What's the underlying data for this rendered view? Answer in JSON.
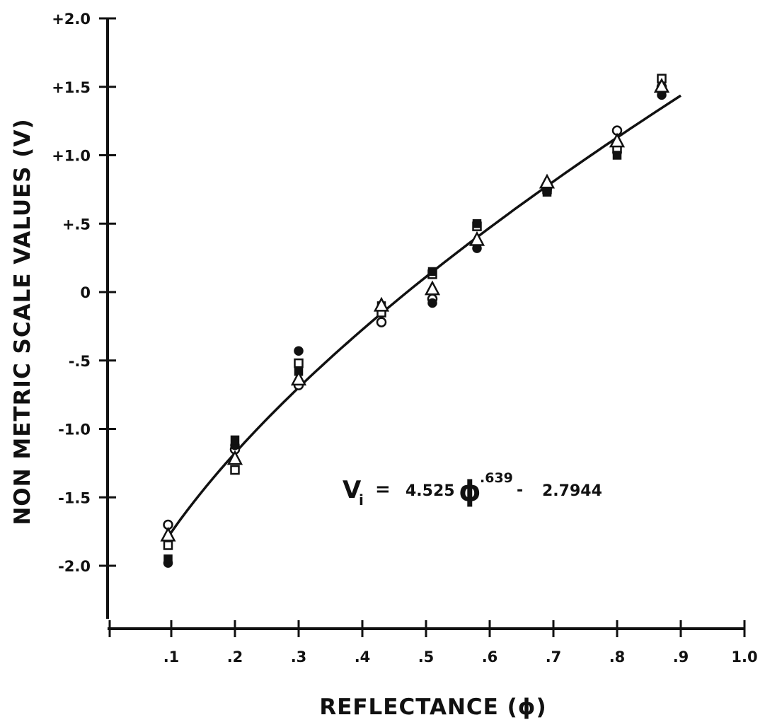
{
  "chart_data": {
    "type": "scatter",
    "xlabel": "REFLECTANCE (ϕ)",
    "ylabel": "NON METRIC SCALE VALUES (V)",
    "xlim": [
      0,
      1.0
    ],
    "ylim": [
      -2.4,
      2.0
    ],
    "x_ticks": [
      {
        "value": 0.1,
        "label": ".1"
      },
      {
        "value": 0.2,
        "label": ".2"
      },
      {
        "value": 0.3,
        "label": ".3"
      },
      {
        "value": 0.4,
        "label": ".4"
      },
      {
        "value": 0.5,
        "label": ".5"
      },
      {
        "value": 0.6,
        "label": ".6"
      },
      {
        "value": 0.7,
        "label": ".7"
      },
      {
        "value": 0.8,
        "label": ".8"
      },
      {
        "value": 0.9,
        "label": ".9"
      },
      {
        "value": 1.0,
        "label": "1.0"
      }
    ],
    "y_ticks": [
      {
        "value": 2.0,
        "label": "+2.0"
      },
      {
        "value": 1.5,
        "label": "+1.5"
      },
      {
        "value": 1.0,
        "label": "+1.0"
      },
      {
        "value": 0.5,
        "label": "+.5"
      },
      {
        "value": 0,
        "label": "0"
      },
      {
        "value": -0.5,
        "label": "-.5"
      },
      {
        "value": -1.0,
        "label": "-1.0"
      },
      {
        "value": -1.5,
        "label": "-1.5"
      },
      {
        "value": -2.0,
        "label": "-2.0"
      }
    ],
    "annotation": {
      "V": "V",
      "sub": "i",
      "eq": "=",
      "coef": "4.525",
      "phi": "ϕ",
      "exp": ".639",
      "minus": "-",
      "const": "2.7944"
    },
    "fit_curve": {
      "a": 4.525,
      "b": 0.639,
      "c": -2.7944,
      "x_range": [
        0.095,
        0.9
      ]
    },
    "series": [
      {
        "marker": "circle",
        "points": [
          [
            0.095,
            -1.7
          ],
          [
            0.2,
            -1.15
          ],
          [
            0.3,
            -0.68
          ],
          [
            0.43,
            -0.22
          ],
          [
            0.51,
            -0.05
          ],
          [
            0.58,
            0.36
          ],
          [
            0.69,
            0.76
          ],
          [
            0.8,
            1.18
          ],
          [
            0.87,
            1.5
          ]
        ]
      },
      {
        "marker": "filled-circle",
        "points": [
          [
            0.095,
            -1.98
          ],
          [
            0.2,
            -1.12
          ],
          [
            0.3,
            -0.43
          ],
          [
            0.43,
            -0.12
          ],
          [
            0.51,
            -0.08
          ],
          [
            0.58,
            0.32
          ],
          [
            0.69,
            0.74
          ],
          [
            0.8,
            1.02
          ],
          [
            0.87,
            1.44
          ]
        ]
      },
      {
        "marker": "square",
        "points": [
          [
            0.095,
            -1.85
          ],
          [
            0.2,
            -1.3
          ],
          [
            0.3,
            -0.52
          ],
          [
            0.43,
            -0.15
          ],
          [
            0.51,
            0.13
          ],
          [
            0.58,
            0.48
          ],
          [
            0.69,
            0.75
          ],
          [
            0.8,
            1.05
          ],
          [
            0.87,
            1.56
          ]
        ]
      },
      {
        "marker": "filled-square",
        "points": [
          [
            0.095,
            -1.95
          ],
          [
            0.2,
            -1.08
          ],
          [
            0.3,
            -0.58
          ],
          [
            0.43,
            -0.1
          ],
          [
            0.51,
            0.15
          ],
          [
            0.58,
            0.5
          ],
          [
            0.69,
            0.73
          ],
          [
            0.8,
            1.0
          ],
          [
            0.87,
            1.46
          ]
        ]
      },
      {
        "marker": "triangle",
        "points": [
          [
            0.095,
            -1.78
          ],
          [
            0.2,
            -1.22
          ],
          [
            0.3,
            -0.64
          ],
          [
            0.43,
            -0.1
          ],
          [
            0.51,
            0.02
          ],
          [
            0.58,
            0.38
          ],
          [
            0.69,
            0.8
          ],
          [
            0.8,
            1.1
          ],
          [
            0.87,
            1.5
          ]
        ]
      }
    ]
  }
}
